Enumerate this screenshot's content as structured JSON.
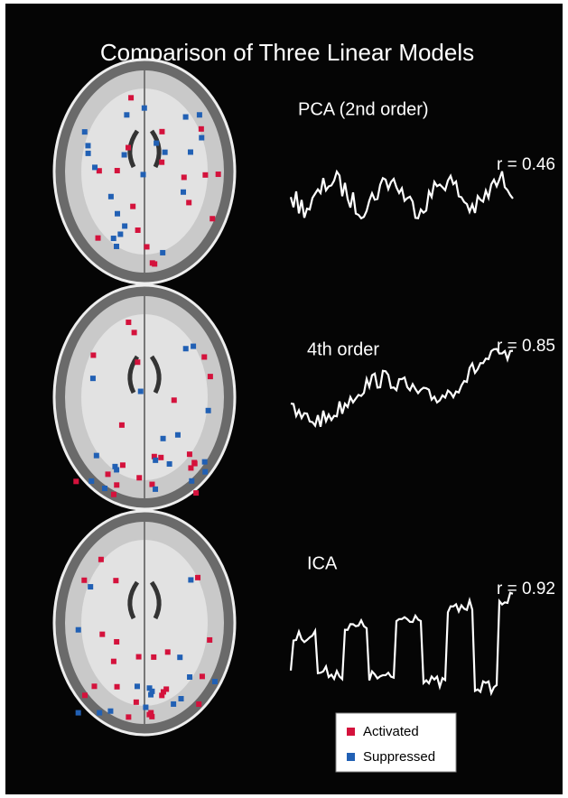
{
  "header": {
    "title": "Comparison of Three Linear Models"
  },
  "panels": [
    {
      "label": "PCA (2nd order)",
      "r": "r = 0.46"
    },
    {
      "label": "4th order",
      "r": "r = 0.85"
    },
    {
      "label": "ICA",
      "r": "r = 0.92"
    }
  ],
  "legend": {
    "items": [
      {
        "label": "Activated",
        "color": "#d4123c"
      },
      {
        "label": "Suppressed",
        "color": "#2160b4"
      }
    ]
  }
}
